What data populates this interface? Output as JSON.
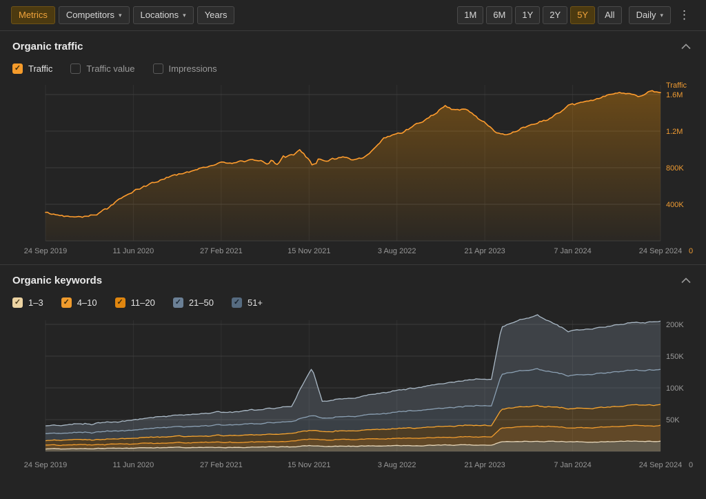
{
  "toolbar": {
    "left_buttons": [
      {
        "label": "Metrics",
        "selected": true,
        "caret": false
      },
      {
        "label": "Competitors",
        "selected": false,
        "caret": true
      },
      {
        "label": "Locations",
        "selected": false,
        "caret": true
      },
      {
        "label": "Years",
        "selected": false,
        "caret": false
      }
    ],
    "range_buttons": [
      {
        "label": "1M",
        "selected": false
      },
      {
        "label": "6M",
        "selected": false
      },
      {
        "label": "1Y",
        "selected": false
      },
      {
        "label": "2Y",
        "selected": false
      },
      {
        "label": "5Y",
        "selected": true
      },
      {
        "label": "All",
        "selected": false
      }
    ],
    "interval_button": {
      "label": "Daily",
      "caret": true
    },
    "kebab_icon": "kebab-menu"
  },
  "traffic_section": {
    "title": "Organic traffic",
    "legend": [
      {
        "label": "Traffic",
        "checked": true,
        "color": "#f59b2b",
        "check_color": "#3a2a0c"
      },
      {
        "label": "Traffic value",
        "checked": false,
        "color": "",
        "check_color": ""
      },
      {
        "label": "Impressions",
        "checked": false,
        "color": "",
        "check_color": ""
      }
    ]
  },
  "keywords_section": {
    "title": "Organic keywords",
    "legend": [
      {
        "label": "1–3",
        "checked": true,
        "color": "#ecd3a2",
        "check_color": "#4a3a1a"
      },
      {
        "label": "4–10",
        "checked": true,
        "color": "#ef9b2d",
        "check_color": "#3a2a0c"
      },
      {
        "label": "11–20",
        "checked": true,
        "color": "#e0860f",
        "check_color": "#3a2a0c"
      },
      {
        "label": "21–50",
        "checked": true,
        "color": "#6b8096",
        "check_color": "#1c2834"
      },
      {
        "label": "51+",
        "checked": true,
        "color": "#566b80",
        "check_color": "#16202b"
      }
    ]
  },
  "chart_data": [
    {
      "type": "area",
      "name": "organic-traffic",
      "axis_label": "Traffic",
      "unit": "thousands",
      "x_tick_labels": [
        "24 Sep 2019",
        "11 Jun 2020",
        "27 Feb 2021",
        "15 Nov 2021",
        "3 Aug 2022",
        "21 Apr 2023",
        "7 Jan 2024",
        "24 Sep 2024"
      ],
      "y_ticks": [
        {
          "value": 1600,
          "label": "1.6M"
        },
        {
          "value": 1200,
          "label": "1.2M"
        },
        {
          "value": 800,
          "label": "800K"
        },
        {
          "value": 400,
          "label": "400K"
        }
      ],
      "zero_label": "0",
      "y_max": 1700,
      "months_span": 60,
      "values_k": [
        310,
        285,
        272,
        268,
        276,
        292,
        350,
        440,
        510,
        560,
        610,
        655,
        700,
        730,
        760,
        790,
        820,
        860,
        845,
        862,
        880,
        868,
        845,
        900,
        955,
        1000,
        885,
        862,
        900,
        915,
        880,
        902,
        1000,
        1120,
        1160,
        1200,
        1270,
        1320,
        1400,
        1470,
        1425,
        1450,
        1350,
        1280,
        1185,
        1160,
        1200,
        1255,
        1300,
        1325,
        1400,
        1470,
        1500,
        1535,
        1555,
        1598,
        1615,
        1600,
        1580,
        1645,
        1620
      ],
      "jitter_k": 20,
      "volatile_range": [
        22,
        27,
        3.5
      ],
      "line_color": "#ff9d2e",
      "label_color": "#ef9b32",
      "fill_top": "rgba(255,153,0,0.32)",
      "fill_bottom": "rgba(255,153,0,0.03)"
    },
    {
      "type": "stacked_area",
      "name": "organic-keywords",
      "unit": "thousands",
      "x_tick_labels": [
        "24 Sep 2019",
        "11 Jun 2020",
        "27 Feb 2021",
        "15 Nov 2021",
        "3 Aug 2022",
        "21 Apr 2023",
        "7 Jan 2024",
        "24 Sep 2024"
      ],
      "y_ticks": [
        {
          "value": 200,
          "label": "200K"
        },
        {
          "value": 150,
          "label": "150K"
        },
        {
          "value": 100,
          "label": "100K"
        },
        {
          "value": 50,
          "label": "50K"
        }
      ],
      "zero_label": "0",
      "y_max": 230,
      "x_anchors_months": [
        0,
        3,
        6,
        9,
        12,
        15,
        18,
        21,
        24,
        26,
        27,
        30,
        33,
        36,
        39,
        42,
        43.5,
        44.5,
        48,
        51,
        54,
        57,
        60
      ],
      "series": [
        {
          "name": "1–3",
          "color": "#e7d6b8",
          "fill": "rgba(236,211,162,0.32)",
          "values_k": [
            4,
            4,
            5,
            5,
            6,
            6,
            6,
            7,
            7,
            9,
            8,
            8,
            9,
            9,
            10,
            10,
            10,
            15,
            16,
            15,
            15,
            16,
            16
          ]
        },
        {
          "name": "4–10",
          "color": "#ef9b2d",
          "fill": "rgba(239,155,45,0.30)",
          "values_k": [
            6,
            6,
            6,
            7,
            7,
            8,
            8,
            8,
            9,
            11,
            10,
            11,
            11,
            12,
            12,
            13,
            13,
            22,
            24,
            22,
            23,
            24,
            25
          ]
        },
        {
          "name": "11–20",
          "color": "#f6a42f",
          "fill": "rgba(246,164,47,0.20)",
          "values_k": [
            7,
            8,
            8,
            9,
            10,
            10,
            11,
            11,
            12,
            14,
            13,
            14,
            15,
            16,
            17,
            18,
            18,
            30,
            32,
            30,
            31,
            32,
            33
          ]
        },
        {
          "name": "21–50",
          "color": "#8ba0b3",
          "fill": "rgba(108,128,148,0.30)",
          "values_k": [
            11,
            11,
            12,
            13,
            15,
            16,
            17,
            18,
            19,
            23,
            21,
            23,
            25,
            27,
            29,
            31,
            31,
            55,
            58,
            52,
            54,
            55,
            55
          ]
        },
        {
          "name": "51+",
          "color": "#aab9c6",
          "fill": "rgba(138,156,172,0.26)",
          "values_k": [
            12,
            13,
            14,
            16,
            18,
            19,
            20,
            22,
            24,
            75,
            27,
            29,
            33,
            36,
            39,
            42,
            42,
            75,
            85,
            70,
            72,
            75,
            76
          ]
        }
      ],
      "jitter_k": 0.9,
      "label_color": "#9b9b9b"
    }
  ]
}
